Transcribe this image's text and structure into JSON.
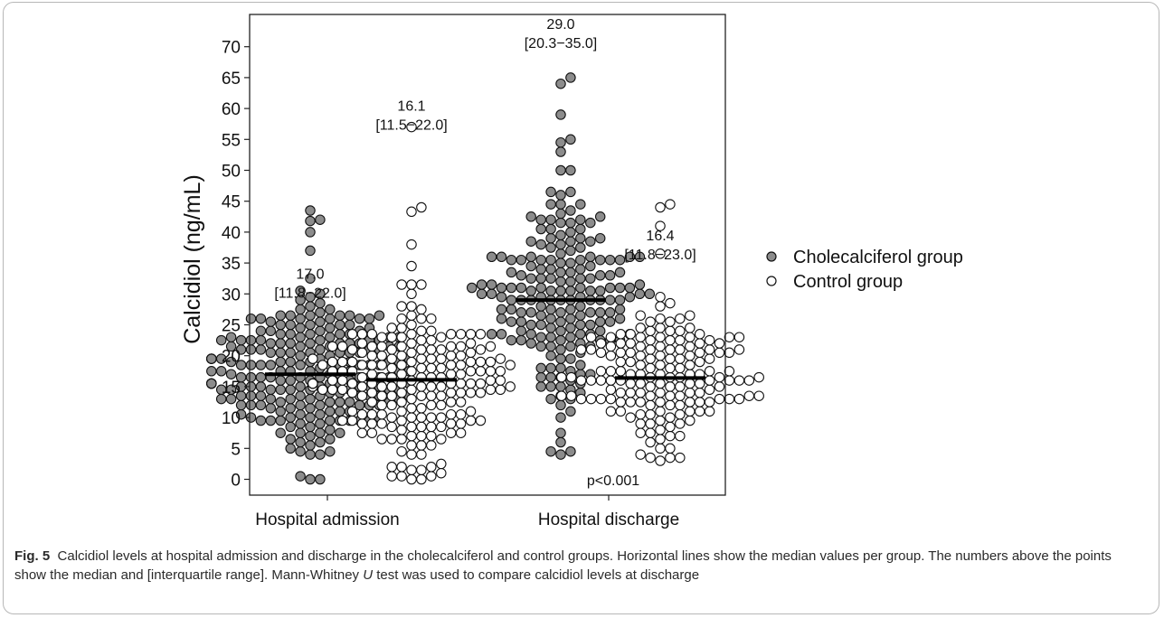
{
  "chart_data": {
    "type": "scatter",
    "subtype": "beeswarm",
    "ylabel": "Calcidiol (ng/mL)",
    "xlabel": "",
    "ylim": [
      0,
      70
    ],
    "yticks": [
      0,
      5,
      10,
      15,
      20,
      25,
      30,
      35,
      40,
      45,
      50,
      55,
      60,
      65,
      70
    ],
    "categories": [
      "Hospital admission",
      "Hospital discharge"
    ],
    "grid": false,
    "legend_position": "right",
    "series": [
      {
        "name": "Cholecalciferol group",
        "color": "#8c8c8c",
        "medians": [
          17.0,
          29.0
        ],
        "median_labels": [
          "17.0",
          "29.0"
        ],
        "iqr_labels": [
          "[11.8−22.0]",
          "[20.3−35.0]"
        ]
      },
      {
        "name": "Control group",
        "color": "#ffffff",
        "medians": [
          16.1,
          16.4
        ],
        "median_labels": [
          "16.1",
          "16.4"
        ],
        "iqr_labels": [
          "[11.5−22.0]",
          "[11.8−23.0]"
        ]
      }
    ],
    "annotations": [
      "p<0.001"
    ]
  },
  "caption": {
    "label": "Fig. 5",
    "text_before_u": "Calcidiol levels at hospital admission and discharge in the cholecalciferol and control groups. Horizontal lines show the median values per group. The numbers above the points show the median and [interquartile range]. Mann-Whitney ",
    "u": "U",
    "text_after_u": " test was used to compare calcidiol levels at discharge"
  }
}
